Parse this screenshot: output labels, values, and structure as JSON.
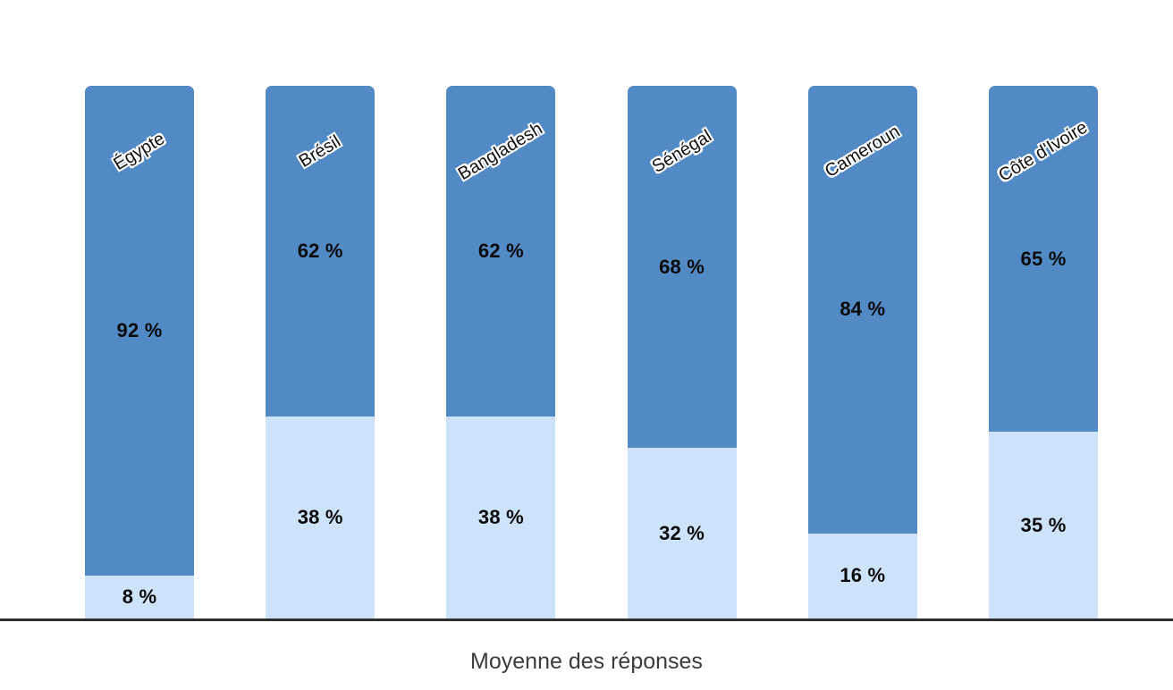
{
  "chart_data": {
    "type": "bar",
    "stacked": true,
    "orientation": "vertical",
    "title": "",
    "xlabel": "Moyenne des réponses",
    "ylabel": "",
    "ylim": [
      0,
      100
    ],
    "grid": false,
    "legend": null,
    "categories": [
      "Égypte",
      "Brésil",
      "Bangladesh",
      "Sénégal",
      "Cameroun",
      "Côte d'Ivoire"
    ],
    "series": [
      {
        "name": "segment-haut-bleu-fonce",
        "color": "#528AC6",
        "values": [
          92,
          62,
          62,
          68,
          84,
          65
        ],
        "labels": [
          "92 %",
          "62 %",
          "62 %",
          "68 %",
          "84 %",
          "65 %"
        ]
      },
      {
        "name": "segment-bas-bleu-clair",
        "color": "#CDE3F9",
        "values": [
          8,
          38,
          38,
          32,
          16,
          35
        ],
        "labels": [
          "8 %",
          "38 %",
          "38 %",
          "32 %",
          "16 %",
          "35 %"
        ]
      }
    ]
  },
  "colors": {
    "dark_segment": "#528AC6",
    "light_segment": "#CDE3F9",
    "axis_line": "#2e2e2e",
    "value_label_text": "#0a0a0a",
    "axis_title_text": "#3b3b3b"
  }
}
